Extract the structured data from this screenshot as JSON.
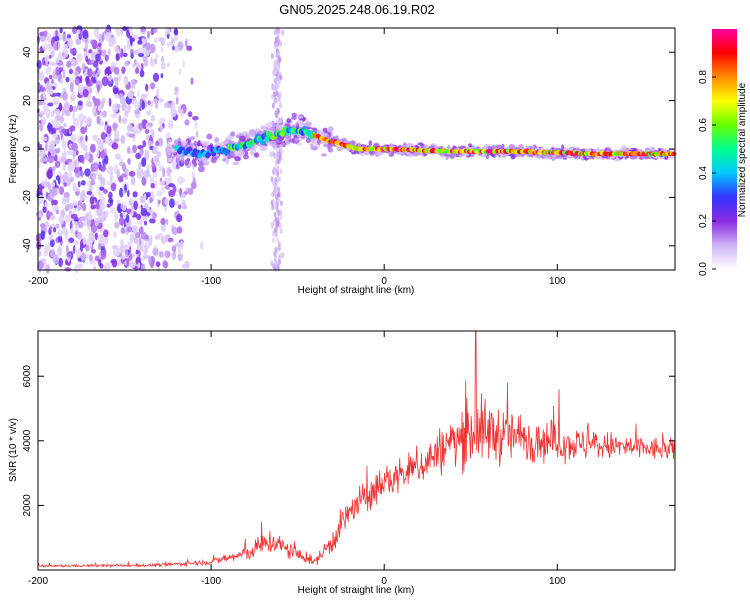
{
  "figure": {
    "title": "GN05.2025.248.06.19.R02"
  },
  "chart_data": [
    {
      "type": "heatmap",
      "name": "spectrogram",
      "xlabel": "Height of straight line (km)",
      "ylabel": "Frequency (Hz)",
      "xlim": [
        -200,
        168
      ],
      "ylim": [
        -50,
        50
      ],
      "xticks": [
        -200,
        -100,
        0,
        100
      ],
      "yticks": [
        -40,
        -20,
        0,
        20,
        40
      ],
      "colorbar": {
        "label": "Normalized spectral amplitude",
        "range": [
          0,
          1
        ],
        "ticks": [
          0.0,
          0.2,
          0.4,
          0.6,
          0.8
        ],
        "tick_labels": [
          "0.0",
          "0.2",
          "0.4",
          "0.6",
          "0.8"
        ],
        "colors": [
          "#ffffff",
          "#cdb2f5",
          "#8a2be2",
          "#3333ff",
          "#00c8ff",
          "#00ff90",
          "#66ff00",
          "#ffff00",
          "#ff8c00",
          "#ff0000",
          "#ff00a0"
        ]
      },
      "center_line": [
        {
          "x": -120,
          "y": 0
        },
        {
          "x": -105,
          "y": -2
        },
        {
          "x": -90,
          "y": 0
        },
        {
          "x": -70,
          "y": 4
        },
        {
          "x": -55,
          "y": 8
        },
        {
          "x": -45,
          "y": 7
        },
        {
          "x": -35,
          "y": 4
        },
        {
          "x": -25,
          "y": 2
        },
        {
          "x": -15,
          "y": 0
        },
        {
          "x": 0,
          "y": 0
        },
        {
          "x": 40,
          "y": -1
        },
        {
          "x": 80,
          "y": -1
        },
        {
          "x": 120,
          "y": -2
        },
        {
          "x": 168,
          "y": -2
        }
      ]
    },
    {
      "type": "line",
      "name": "snr",
      "xlabel": "Height of straight line (km)",
      "ylabel": "SNR (10 * v/v)",
      "xlim": [
        -200,
        168
      ],
      "ylim": [
        0,
        7400
      ],
      "xticks": [
        -200,
        -100,
        0,
        100
      ],
      "yticks": [
        2000,
        4000,
        6000
      ],
      "color": "#ee3333",
      "envelope": [
        {
          "x": -200,
          "mean": 120,
          "spread": 60
        },
        {
          "x": -130,
          "mean": 150,
          "spread": 80
        },
        {
          "x": -100,
          "mean": 250,
          "spread": 150
        },
        {
          "x": -80,
          "mean": 500,
          "spread": 400
        },
        {
          "x": -65,
          "mean": 900,
          "spread": 700
        },
        {
          "x": -55,
          "mean": 600,
          "spread": 500
        },
        {
          "x": -40,
          "mean": 250,
          "spread": 200
        },
        {
          "x": -30,
          "mean": 900,
          "spread": 700
        },
        {
          "x": -20,
          "mean": 1800,
          "spread": 900
        },
        {
          "x": 0,
          "mean": 2700,
          "spread": 900
        },
        {
          "x": 20,
          "mean": 3200,
          "spread": 1000
        },
        {
          "x": 40,
          "mean": 4000,
          "spread": 1400
        },
        {
          "x": 55,
          "mean": 4300,
          "spread": 1800
        },
        {
          "x": 80,
          "mean": 4100,
          "spread": 1300
        },
        {
          "x": 110,
          "mean": 3900,
          "spread": 900
        },
        {
          "x": 140,
          "mean": 3800,
          "spread": 700
        },
        {
          "x": 168,
          "mean": 3700,
          "spread": 600
        }
      ],
      "peak": {
        "x": 53,
        "y": 7400
      }
    }
  ]
}
